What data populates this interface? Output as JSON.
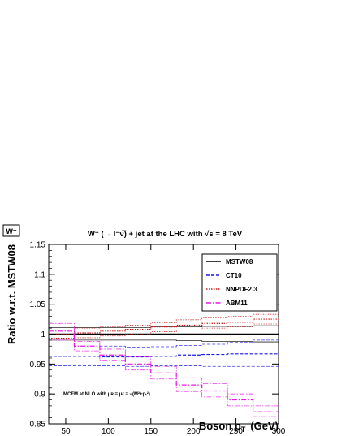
{
  "corner_tag": "W⁻",
  "title": "W⁻ (→ l⁻ν̅) + jet at the LHC with √s = 8 TeV",
  "annotation": "MCFM at NLO with μʀ = μғ = √(M²+pₜ²)",
  "chart_data": {
    "type": "line",
    "step": true,
    "xlabel": "Boson p",
    "xlabel_subscript": "T",
    "xlabel_unit": "(GeV)",
    "ylabel": "Ratio w.r.t. MSTW08",
    "xlim": [
      30,
      300
    ],
    "ylim": [
      0.85,
      1.15
    ],
    "x_ticks": [
      50,
      100,
      150,
      200,
      250,
      300
    ],
    "y_ticks": [
      0.85,
      0.9,
      0.95,
      1,
      1.05,
      1.1,
      1.15
    ],
    "y_tick_labels": [
      "0.85",
      "0.9",
      "0.95",
      "1",
      "1.05",
      "1.1",
      "1.15"
    ],
    "bin_edges": [
      30,
      60,
      90,
      120,
      150,
      180,
      210,
      240,
      270,
      300
    ],
    "legend_position": "top-right",
    "series": [
      {
        "name": "MSTW08",
        "color": "#000000",
        "dash": "solid",
        "central": [
          1,
          1,
          1,
          1,
          1,
          1,
          1,
          1,
          1
        ],
        "upper": [
          1.011,
          1.011,
          1.011,
          1.011,
          1.012,
          1.012,
          1.013,
          1.013,
          1.014
        ],
        "lower": [
          0.99,
          0.99,
          0.99,
          0.99,
          0.99,
          0.989,
          0.988,
          0.988,
          0.987
        ]
      },
      {
        "name": "CT10",
        "color": "#1a1ae6",
        "dash": "4,2",
        "central": [
          0.963,
          0.963,
          0.962,
          0.962,
          0.963,
          0.965,
          0.966,
          0.967,
          0.967
        ],
        "upper": [
          0.985,
          0.985,
          0.98,
          0.978,
          0.979,
          0.981,
          0.983,
          0.986,
          0.99
        ],
        "lower": [
          0.947,
          0.947,
          0.947,
          0.946,
          0.947,
          0.947,
          0.946,
          0.946,
          0.946
        ]
      },
      {
        "name": "NNPDF2.3",
        "color": "#cc1a1a",
        "dash": "1.5,1.5",
        "central": [
          0.993,
          1.002,
          1.005,
          1.008,
          1.012,
          1.015,
          1.018,
          1.02,
          1.025
        ],
        "upper": [
          1.0,
          1.01,
          1.012,
          1.015,
          1.019,
          1.024,
          1.027,
          1.03,
          1.033
        ],
        "lower": [
          0.985,
          0.994,
          0.997,
          1.0,
          1.004,
          1.007,
          1.01,
          1.012,
          1.017
        ]
      },
      {
        "name": "ABM11",
        "color": "#e619e6",
        "dash": "6,2,1.5,2",
        "central": [
          1.005,
          0.98,
          0.965,
          0.95,
          0.935,
          0.915,
          0.905,
          0.89,
          0.87
        ],
        "upper": [
          1.018,
          0.988,
          0.975,
          0.962,
          0.946,
          0.927,
          0.917,
          0.9,
          0.88
        ],
        "lower": [
          0.99,
          0.972,
          0.955,
          0.94,
          0.925,
          0.904,
          0.895,
          0.88,
          0.862
        ]
      }
    ]
  }
}
